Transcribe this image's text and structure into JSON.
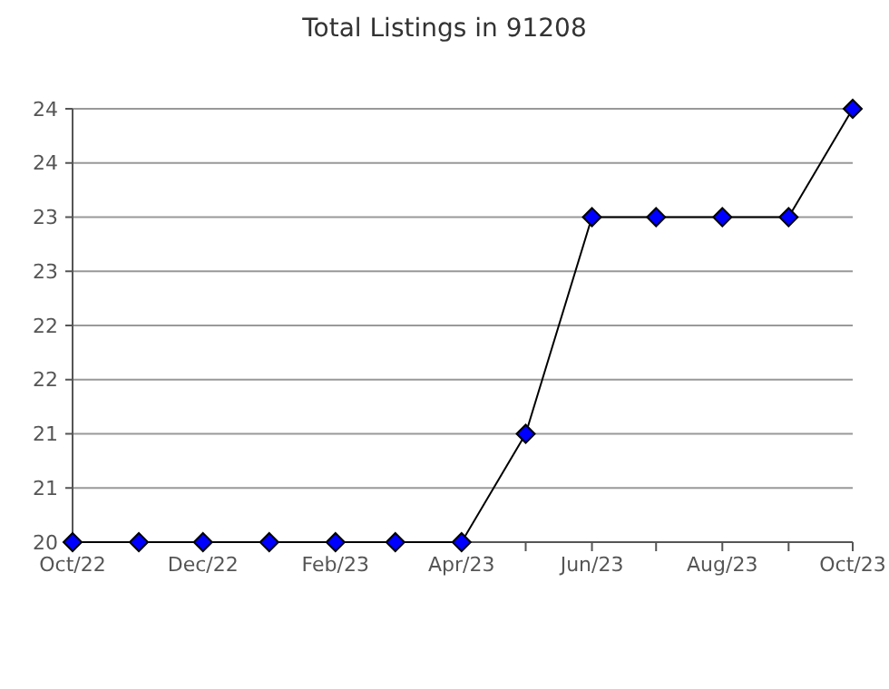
{
  "chart_data": {
    "type": "line",
    "title": "Total Listings in 91208",
    "x": [
      "2022-10",
      "2022-11",
      "2022-12",
      "2023-01",
      "2023-02",
      "2023-03",
      "2023-04",
      "2023-05",
      "2023-06",
      "2023-07",
      "2023-08",
      "2023-09",
      "2023-10"
    ],
    "series": [
      {
        "color": "#0000ff",
        "values": [
          20,
          20,
          20,
          20,
          20,
          20,
          20,
          21,
          23,
          23,
          23,
          23,
          24
        ]
      }
    ],
    "xlim": [
      "2022-10",
      "2023-10"
    ],
    "xticks": [
      {
        "value": "2022-10",
        "label": "Oct/22"
      },
      {
        "value": "2022-11",
        "label": null
      },
      {
        "value": "2022-12",
        "label": "Dec/22"
      },
      {
        "value": "2023-01",
        "label": null
      },
      {
        "value": "2023-02",
        "label": "Feb/23"
      },
      {
        "value": "2023-03",
        "label": null
      },
      {
        "value": "2023-04",
        "label": "Apr/23"
      },
      {
        "value": "2023-05",
        "label": null
      },
      {
        "value": "2023-06",
        "label": "Jun/23"
      },
      {
        "value": "2023-07",
        "label": null
      },
      {
        "value": "2023-08",
        "label": "Aug/23"
      },
      {
        "value": "2023-09",
        "label": null
      },
      {
        "value": "2023-10",
        "label": "Oct/23"
      }
    ],
    "ylim": [
      20,
      24
    ],
    "yticks": [
      20,
      {
        "value": 20.5,
        "label": "21"
      },
      21,
      {
        "value": 21.5,
        "label": "22"
      },
      22,
      {
        "value": 22.5,
        "label": "23"
      },
      23,
      {
        "value": 23.5,
        "label": "24"
      },
      24
    ],
    "grid": "y",
    "marker": "diamond",
    "line_style": "solid"
  }
}
